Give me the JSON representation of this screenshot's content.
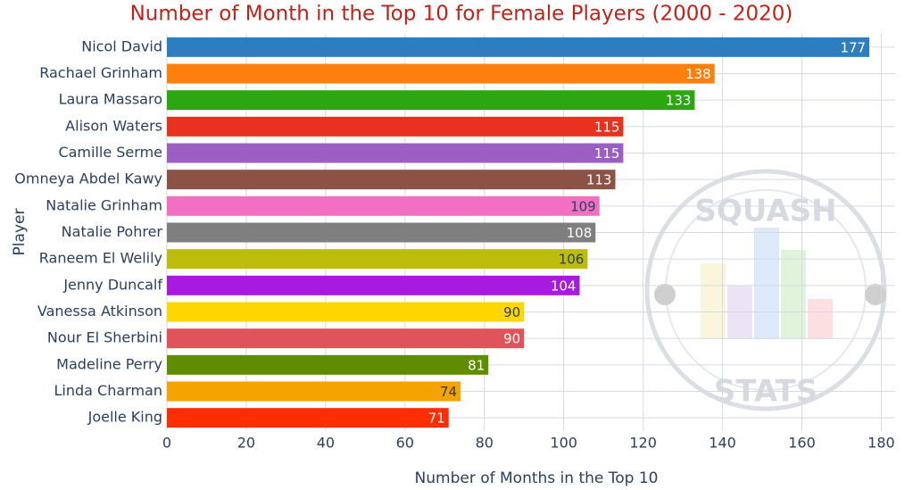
{
  "chart_data": {
    "type": "bar",
    "orientation": "horizontal",
    "title": "Number of Month in the Top 10 for Female Players (2000 - 2020)",
    "x_label": "Number of Months in the Top 10",
    "y_label": "Player",
    "categories": [
      "Nicol David",
      "Rachael Grinham",
      "Laura Massaro",
      "Alison Waters",
      "Camille Serme",
      "Omneya Abdel Kawy",
      "Natalie Grinham",
      "Natalie Pohrer",
      "Raneem El Welily",
      "Jenny Duncalf",
      "Vanessa Atkinson",
      "Nour El Sherbini",
      "Madeline Perry",
      "Linda Charman",
      "Joelle King"
    ],
    "values": [
      177,
      138,
      133,
      115,
      115,
      113,
      109,
      108,
      106,
      104,
      90,
      90,
      81,
      74,
      71
    ],
    "colors": [
      "#2e7ebf",
      "#fd7f0e",
      "#2ca712",
      "#e8311f",
      "#9b5fc4",
      "#8c5245",
      "#f26fc4",
      "#7f7f7f",
      "#bcbd0a",
      "#a81bde",
      "#ffd700",
      "#e0535a",
      "#5f8c00",
      "#f5a300",
      "#ff2e00"
    ],
    "xlim": [
      0,
      183.5
    ],
    "xticks": [
      0,
      20,
      40,
      60,
      80,
      100,
      120,
      140,
      160,
      180
    ],
    "grid": true,
    "watermark": {
      "top": "SQUASH",
      "bottom": "STATS"
    }
  }
}
